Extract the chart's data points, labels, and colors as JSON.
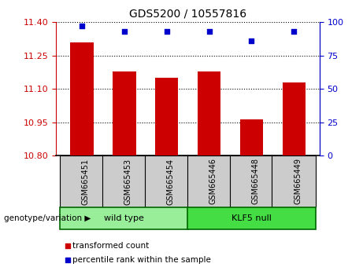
{
  "title": "GDS5200 / 10557816",
  "samples": [
    "GSM665451",
    "GSM665453",
    "GSM665454",
    "GSM665446",
    "GSM665448",
    "GSM665449"
  ],
  "bar_values": [
    11.31,
    11.18,
    11.15,
    11.18,
    10.965,
    11.13
  ],
  "percentile_values": [
    97,
    93,
    93,
    93,
    86,
    93
  ],
  "ylim_left": [
    10.8,
    11.4
  ],
  "ylim_right": [
    0,
    100
  ],
  "yticks_left": [
    10.8,
    10.95,
    11.1,
    11.25,
    11.4
  ],
  "yticks_right": [
    0,
    25,
    50,
    75,
    100
  ],
  "bar_color": "#cc0000",
  "dot_color": "#0000cc",
  "bar_width": 0.55,
  "groups": [
    {
      "label": "wild type",
      "indices": [
        0,
        1,
        2
      ],
      "color": "#99ee99"
    },
    {
      "label": "KLF5 null",
      "indices": [
        3,
        4,
        5
      ],
      "color": "#44dd44"
    }
  ],
  "group_label_prefix": "genotype/variation",
  "legend_bar_label": "transformed count",
  "legend_dot_label": "percentile rank within the sample",
  "tick_color_left": "#cc0000",
  "tick_color_right": "#0000cc",
  "background_color": "#ffffff",
  "plot_bg_color": "#ffffff",
  "sample_box_color": "#cccccc",
  "group_border_color": "#006600",
  "figsize": [
    4.61,
    3.54
  ],
  "dpi": 100
}
